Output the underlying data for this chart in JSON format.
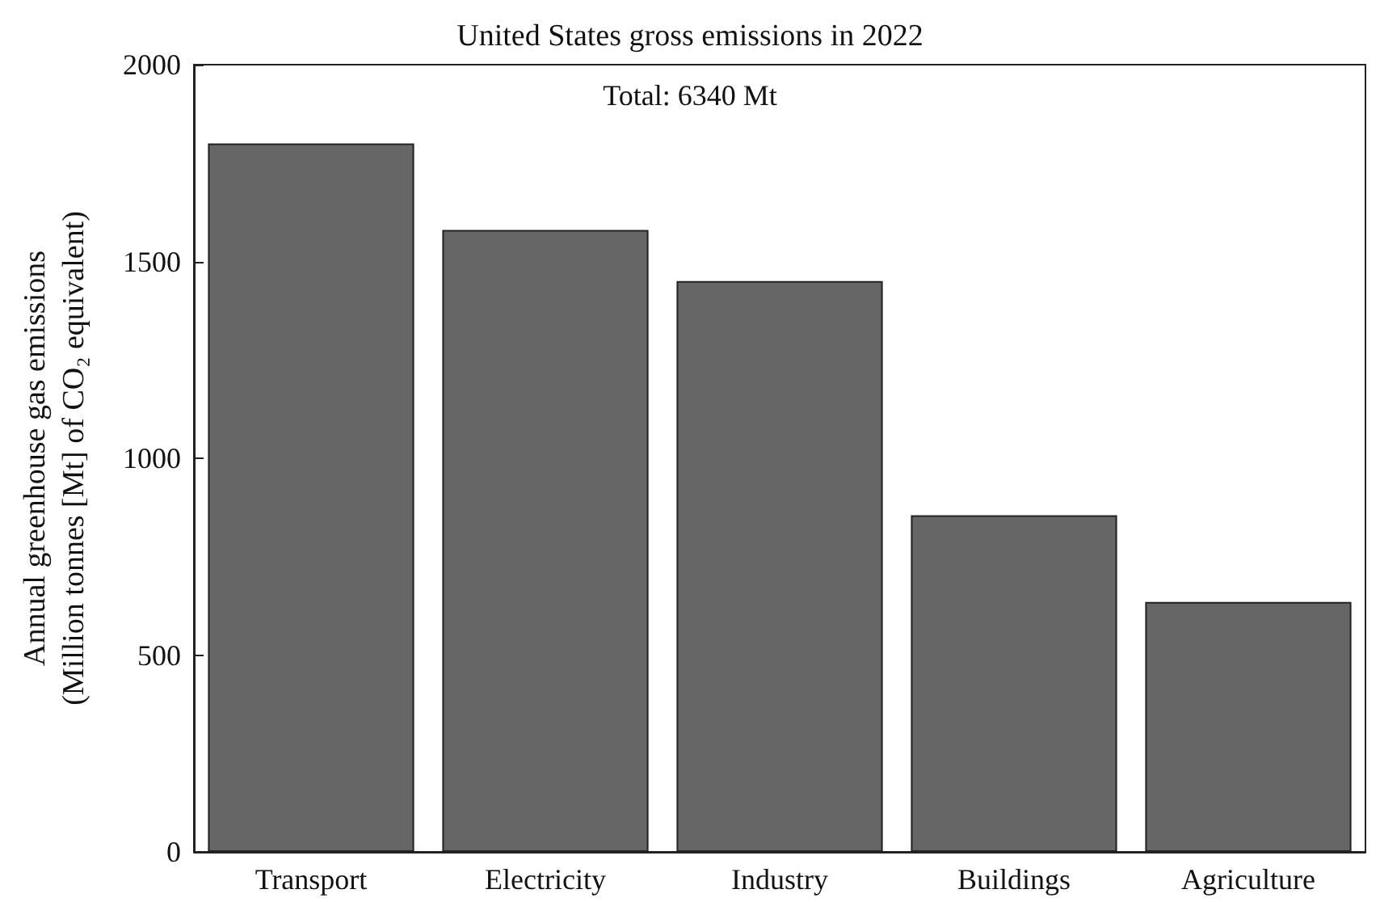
{
  "chart_data": {
    "type": "bar",
    "title": "United States gross emissions in 2022",
    "ylabel": "Annual greenhouse gas emissions\n(Million tonnes [Mt] of CO₂ equivalent)",
    "categories": [
      "Transport",
      "Electricity",
      "Industry",
      "Buildings",
      "Agriculture"
    ],
    "values": [
      1800,
      1580,
      1450,
      855,
      635
    ],
    "color": "#666666",
    "ylim": [
      0,
      2000
    ],
    "yticks": [
      0,
      500,
      1000,
      1500,
      2000
    ],
    "grid": false,
    "annotations": [
      "Total: 6340 Mt"
    ]
  }
}
